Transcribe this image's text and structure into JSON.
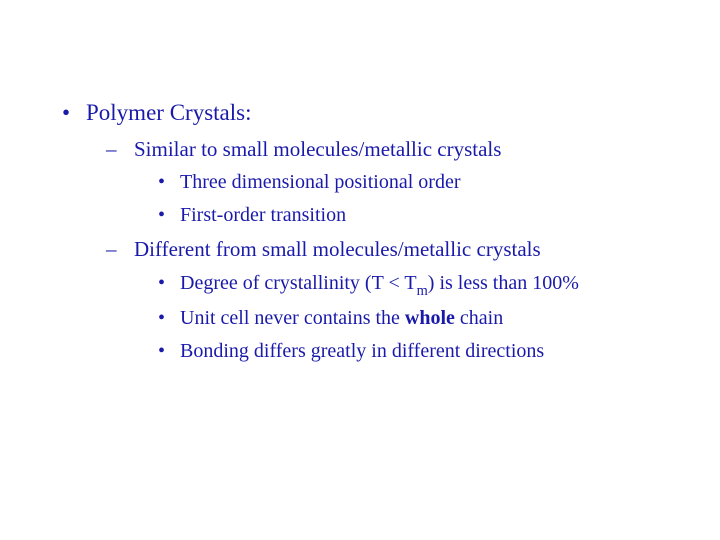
{
  "text_color": "#1a1aaa",
  "background_color": "#ffffff",
  "font_family": "Times New Roman",
  "bullets": {
    "lvl1_item1": "Polymer Crystals:",
    "lvl2_item1": "Similar to small molecules/metallic crystals",
    "lvl3_item1": "Three dimensional positional order",
    "lvl3_item2": "First-order transition",
    "lvl2_item2": "Different from small molecules/metallic crystals",
    "lvl3_item3_prefix": "Degree of crystallinity (T < T",
    "lvl3_item3_sub": "m",
    "lvl3_item3_suffix": ") is less than 100%",
    "lvl3_item4_prefix": "Unit cell never contains the ",
    "lvl3_item4_bold": "whole",
    "lvl3_item4_suffix": " chain",
    "lvl3_item5": "Bonding differs greatly in different directions"
  }
}
